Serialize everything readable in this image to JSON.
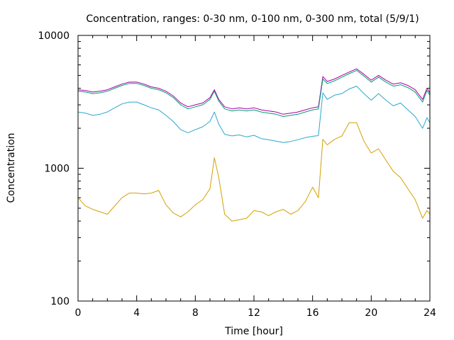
{
  "chart_data": {
    "type": "line",
    "title": "Concentration, ranges: 0-30 nm, 0-100 nm, 0-300 nm, total (5/9/1)",
    "xlabel": "Time [hour]",
    "ylabel": "Concentration",
    "xlim": [
      0,
      24
    ],
    "ylim": [
      100,
      10000
    ],
    "yscale": "log",
    "grid": false,
    "legend": "none",
    "x_ticks": [
      "0",
      "4",
      "8",
      "12",
      "16",
      "20",
      "24"
    ],
    "y_ticks": [
      "100",
      "1000",
      "10000"
    ],
    "x": [
      0,
      0.5,
      1,
      1.5,
      2,
      2.5,
      3,
      3.5,
      4,
      4.5,
      5,
      5.5,
      6,
      6.5,
      7,
      7.5,
      8,
      8.5,
      9,
      9.3,
      9.6,
      10,
      10.5,
      11,
      11.5,
      12,
      12.5,
      13,
      13.5,
      14,
      14.5,
      15,
      15.5,
      16,
      16.4,
      16.7,
      17,
      17.5,
      18,
      18.5,
      19,
      19.5,
      20,
      20.5,
      21,
      21.5,
      22,
      22.5,
      23,
      23.5,
      23.8,
      24
    ],
    "series": [
      {
        "color": "#aa00aa",
        "values": [
          3900,
          3850,
          3750,
          3800,
          3900,
          4100,
          4300,
          4450,
          4450,
          4300,
          4100,
          4000,
          3800,
          3500,
          3100,
          2900,
          3000,
          3100,
          3400,
          3900,
          3300,
          2900,
          2800,
          2850,
          2800,
          2850,
          2750,
          2700,
          2650,
          2550,
          2600,
          2650,
          2750,
          2850,
          2900,
          4900,
          4500,
          4700,
          5000,
          5300,
          5600,
          5100,
          4600,
          5000,
          4600,
          4300,
          4400,
          4200,
          3900,
          3300,
          4000,
          3700
        ]
      },
      {
        "color": "#009e73",
        "values": [
          3800,
          3750,
          3650,
          3700,
          3800,
          4000,
          4200,
          4350,
          4350,
          4200,
          4000,
          3900,
          3700,
          3400,
          3000,
          2800,
          2900,
          3000,
          3300,
          3800,
          3200,
          2800,
          2700,
          2750,
          2700,
          2750,
          2650,
          2600,
          2550,
          2450,
          2500,
          2550,
          2650,
          2750,
          2800,
          4700,
          4350,
          4550,
          4850,
          5150,
          5450,
          4950,
          4450,
          4850,
          4450,
          4150,
          4250,
          4050,
          3750,
          3150,
          3850,
          3550
        ]
      },
      {
        "color": "#2aa7d0",
        "values": [
          2650,
          2600,
          2500,
          2550,
          2650,
          2850,
          3050,
          3150,
          3150,
          3000,
          2850,
          2750,
          2500,
          2250,
          1950,
          1850,
          1950,
          2050,
          2250,
          2650,
          2150,
          1800,
          1750,
          1780,
          1720,
          1770,
          1670,
          1640,
          1600,
          1560,
          1590,
          1640,
          1700,
          1740,
          1760,
          3700,
          3300,
          3550,
          3650,
          3950,
          4150,
          3650,
          3250,
          3650,
          3250,
          2950,
          3100,
          2750,
          2450,
          2000,
          2400,
          2200
        ]
      },
      {
        "color": "#d4a000",
        "values": [
          600,
          520,
          490,
          470,
          450,
          520,
          600,
          650,
          650,
          640,
          650,
          680,
          530,
          460,
          430,
          470,
          530,
          580,
          700,
          1200,
          850,
          450,
          400,
          410,
          420,
          480,
          470,
          440,
          470,
          490,
          450,
          480,
          560,
          720,
          600,
          1650,
          1500,
          1650,
          1750,
          2200,
          2200,
          1600,
          1300,
          1400,
          1150,
          950,
          850,
          700,
          580,
          420,
          480,
          450
        ]
      }
    ]
  }
}
